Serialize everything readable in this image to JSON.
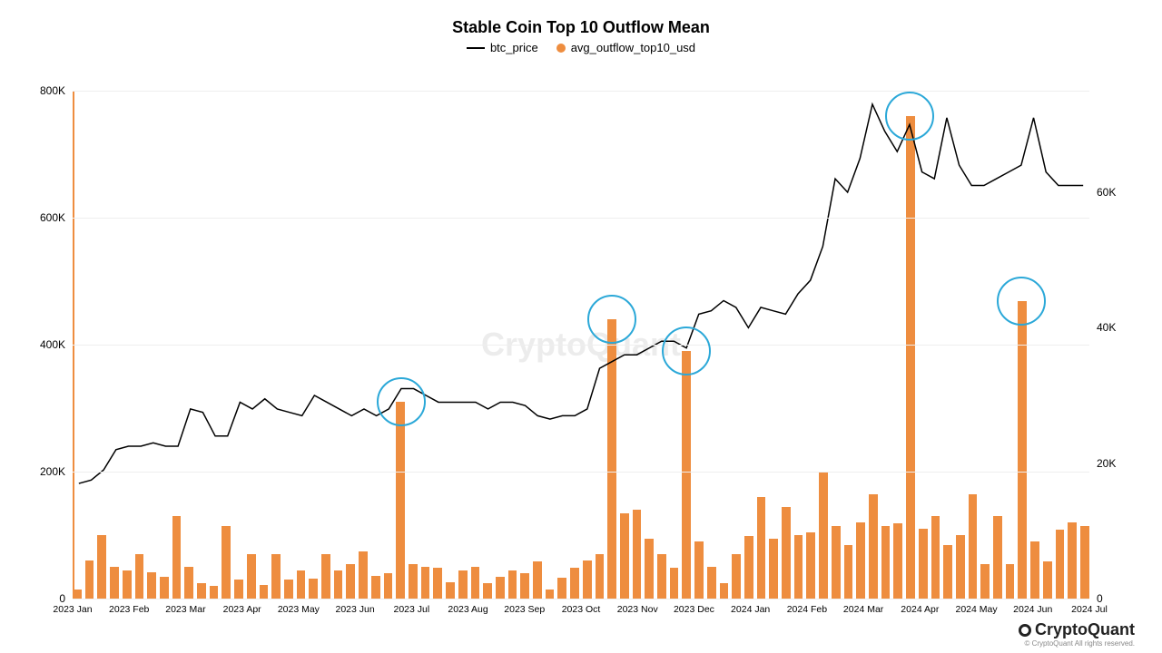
{
  "chart": {
    "type": "combo-bar-line",
    "title": "Stable Coin Top 10 Outflow Mean",
    "title_fontsize": 18,
    "legend": {
      "line_label": "btc_price",
      "bar_label": "avg_outflow_top10_usd"
    },
    "background_color": "#ffffff",
    "grid_color": "#eeeeee",
    "left_axis": {
      "min": 0,
      "max": 800,
      "ticks": [
        0,
        200,
        400,
        600,
        800
      ],
      "tick_labels": [
        "0",
        "200K",
        "400K",
        "600K",
        "800K"
      ]
    },
    "right_axis": {
      "min": 0,
      "max": 75,
      "ticks": [
        0,
        20,
        40,
        60
      ],
      "tick_labels": [
        "0",
        "20K",
        "40K",
        "60K"
      ]
    },
    "x_labels": [
      "2023 Jan",
      "2023 Feb",
      "2023 Mar",
      "2023 Apr",
      "2023 May",
      "2023 Jun",
      "2023 Jul",
      "2023 Aug",
      "2023 Sep",
      "2023 Oct",
      "2023 Nov",
      "2023 Dec",
      "2024 Jan",
      "2024 Feb",
      "2024 Mar",
      "2024 Apr",
      "2024 May",
      "2024 Jun",
      "2024 Jul"
    ],
    "bars": {
      "color": "#ee8d3f",
      "values": [
        15,
        60,
        100,
        50,
        45,
        70,
        42,
        35,
        130,
        50,
        25,
        20,
        115,
        30,
        70,
        22,
        70,
        30,
        45,
        32,
        70,
        45,
        55,
        75,
        36,
        40,
        310,
        55,
        50,
        48,
        26,
        45,
        50,
        25,
        35,
        45,
        40,
        58,
        15,
        33,
        48,
        60,
        70,
        440,
        135,
        140,
        95,
        70,
        48,
        390,
        90,
        50,
        25,
        70,
        98,
        160,
        95,
        145,
        100,
        105,
        200,
        115,
        85,
        120,
        165,
        115,
        118,
        760,
        110,
        130,
        85,
        100,
        165,
        55,
        130,
        55,
        468,
        90,
        58,
        108,
        120,
        115
      ],
      "n_bars": 82
    },
    "line": {
      "color": "#000000",
      "width": 1.5,
      "values": [
        17,
        17.5,
        19,
        22,
        22.5,
        22.5,
        23,
        22.5,
        22.5,
        28,
        27.5,
        24,
        24,
        29,
        28,
        29.5,
        28,
        27.5,
        27,
        30,
        29,
        28,
        27,
        28,
        27,
        28,
        31,
        31,
        30,
        29,
        29,
        29,
        29,
        28,
        29,
        29,
        28.5,
        27,
        26.5,
        27,
        27,
        28,
        34,
        35,
        36,
        36,
        37,
        38,
        38,
        37,
        42,
        42.5,
        44,
        43,
        40,
        43,
        42.5,
        42,
        45,
        47,
        52,
        62,
        60,
        65,
        73,
        69,
        66,
        70,
        63,
        62,
        71,
        64,
        61,
        61,
        62,
        63,
        64,
        71,
        63,
        61,
        61,
        61
      ]
    },
    "circle_annotations": [
      {
        "bar_index": 26,
        "color": "#2ba8d8",
        "diameter": 54
      },
      {
        "bar_index": 43,
        "color": "#2ba8d8",
        "diameter": 54
      },
      {
        "bar_index": 49,
        "color": "#2ba8d8",
        "diameter": 54
      },
      {
        "bar_index": 67,
        "color": "#2ba8d8",
        "diameter": 54
      },
      {
        "bar_index": 76,
        "color": "#2ba8d8",
        "diameter": 54
      }
    ],
    "watermark": "CryptoQuant",
    "brand": "CryptoQuant",
    "copyright": "© CryptoQuant All rights reserved."
  }
}
